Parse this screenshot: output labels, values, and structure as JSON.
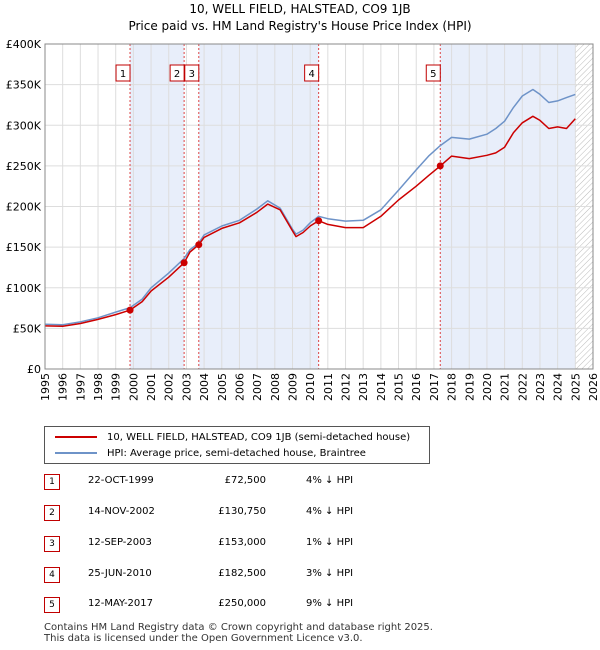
{
  "title_line1": "10, WELL FIELD, HALSTEAD, CO9 1JB",
  "title_line2": "Price paid vs. HM Land Registry's House Price Index (HPI)",
  "colors": {
    "property": "#cc0000",
    "hpi": "#6e93c8",
    "shade": "#e8eefa",
    "grid": "#dddddd"
  },
  "legend": {
    "property_label": "10, WELL FIELD, HALSTEAD, CO9 1JB (semi-detached house)",
    "hpi_label": "HPI: Average price, semi-detached house, Braintree"
  },
  "transactions": [
    {
      "num": "1",
      "date": "22-OCT-1999",
      "price": "£72,500",
      "hpi_diff": "4% ↓ HPI"
    },
    {
      "num": "2",
      "date": "14-NOV-2002",
      "price": "£130,750",
      "hpi_diff": "4% ↓ HPI"
    },
    {
      "num": "3",
      "date": "12-SEP-2003",
      "price": "£153,000",
      "hpi_diff": "1% ↓ HPI"
    },
    {
      "num": "4",
      "date": "25-JUN-2010",
      "price": "£182,500",
      "hpi_diff": "3% ↓ HPI"
    },
    {
      "num": "5",
      "date": "12-MAY-2017",
      "price": "£250,000",
      "hpi_diff": "9% ↓ HPI"
    }
  ],
  "footer_line1": "Contains HM Land Registry data © Crown copyright and database right 2025.",
  "footer_line2": "This data is licensed under the Open Government Licence v3.0.",
  "chart_data": {
    "type": "line",
    "title": "10, WELL FIELD, HALSTEAD, CO9 1JB",
    "subtitle": "Price paid vs. HM Land Registry's House Price Index (HPI)",
    "xlabel": "",
    "ylabel": "",
    "xlim": [
      1995,
      2026
    ],
    "ylim": [
      0,
      400000
    ],
    "x_ticks": [
      1995,
      1996,
      1997,
      1998,
      1999,
      2000,
      2001,
      2002,
      2003,
      2004,
      2005,
      2006,
      2007,
      2008,
      2009,
      2010,
      2011,
      2012,
      2013,
      2014,
      2015,
      2016,
      2017,
      2018,
      2019,
      2020,
      2021,
      2022,
      2023,
      2024,
      2025,
      2026
    ],
    "y_ticks": [
      {
        "value": 0,
        "label": "£0"
      },
      {
        "value": 50000,
        "label": "£50K"
      },
      {
        "value": 100000,
        "label": "£100K"
      },
      {
        "value": 150000,
        "label": "£150K"
      },
      {
        "value": 200000,
        "label": "£200K"
      },
      {
        "value": 250000,
        "label": "£250K"
      },
      {
        "value": 300000,
        "label": "£300K"
      },
      {
        "value": 350000,
        "label": "£350K"
      },
      {
        "value": 400000,
        "label": "£400K"
      }
    ],
    "shaded_periods": [
      [
        1999.81,
        2002.87
      ],
      [
        2003.7,
        2010.48
      ],
      [
        2017.36,
        2025.0
      ]
    ],
    "forecast_start": 2025.0,
    "series": [
      {
        "name": "10, WELL FIELD, HALSTEAD, CO9 1JB (semi-detached house)",
        "x": [
          1995.0,
          1996.0,
          1997.0,
          1998.0,
          1999.0,
          1999.81,
          2000.5,
          2001.0,
          2002.0,
          2002.87,
          2003.2,
          2003.7,
          2004.0,
          2005.0,
          2006.0,
          2007.0,
          2007.6,
          2008.3,
          2009.0,
          2009.2,
          2009.6,
          2010.0,
          2010.48,
          2011.0,
          2012.0,
          2013.0,
          2014.0,
          2015.0,
          2016.0,
          2016.7,
          2017.36,
          2018.0,
          2019.0,
          2020.0,
          2020.5,
          2021.0,
          2021.5,
          2022.0,
          2022.6,
          2023.0,
          2023.5,
          2024.0,
          2024.5,
          2025.0
        ],
        "values": [
          53000,
          52500,
          56000,
          61000,
          67000,
          72500,
          83000,
          96000,
          113000,
          130750,
          144000,
          153000,
          162000,
          173000,
          180000,
          193000,
          203000,
          196000,
          170000,
          163000,
          168000,
          176000,
          182500,
          178000,
          174000,
          174000,
          188000,
          208000,
          225000,
          238000,
          250000,
          262000,
          259000,
          263000,
          266000,
          273000,
          291000,
          303000,
          311000,
          306000,
          296000,
          298000,
          296000,
          308000
        ]
      },
      {
        "name": "HPI: Average price, semi-detached house, Braintree",
        "x": [
          1995.0,
          1996.0,
          1997.0,
          1998.0,
          1999.0,
          1999.81,
          2000.5,
          2001.0,
          2002.0,
          2002.87,
          2003.2,
          2003.7,
          2004.0,
          2005.0,
          2006.0,
          2007.0,
          2007.6,
          2008.3,
          2009.0,
          2009.2,
          2009.6,
          2010.0,
          2010.48,
          2011.0,
          2012.0,
          2013.0,
          2014.0,
          2015.0,
          2016.0,
          2016.7,
          2017.36,
          2018.0,
          2019.0,
          2020.0,
          2020.5,
          2021.0,
          2021.5,
          2022.0,
          2022.6,
          2023.0,
          2023.5,
          2024.0,
          2024.5,
          2025.0
        ],
        "values": [
          55000,
          54500,
          58000,
          63000,
          70000,
          75500,
          86000,
          100000,
          118000,
          136000,
          147000,
          155000,
          165000,
          176000,
          183000,
          197000,
          207000,
          198000,
          172000,
          166000,
          171000,
          180000,
          188000,
          185000,
          182000,
          183000,
          196000,
          220000,
          245000,
          262000,
          275000,
          285000,
          283000,
          289000,
          296000,
          305000,
          322000,
          336000,
          344000,
          338000,
          328000,
          330000,
          334000,
          338000
        ]
      }
    ],
    "sale_markers": [
      {
        "label": "1",
        "x": 1999.81,
        "value": 72500
      },
      {
        "label": "2",
        "x": 2002.87,
        "value": 130750
      },
      {
        "label": "3",
        "x": 2003.7,
        "value": 153000
      },
      {
        "label": "4",
        "x": 2010.48,
        "value": 182500
      },
      {
        "label": "5",
        "x": 2017.36,
        "value": 250000
      }
    ]
  }
}
